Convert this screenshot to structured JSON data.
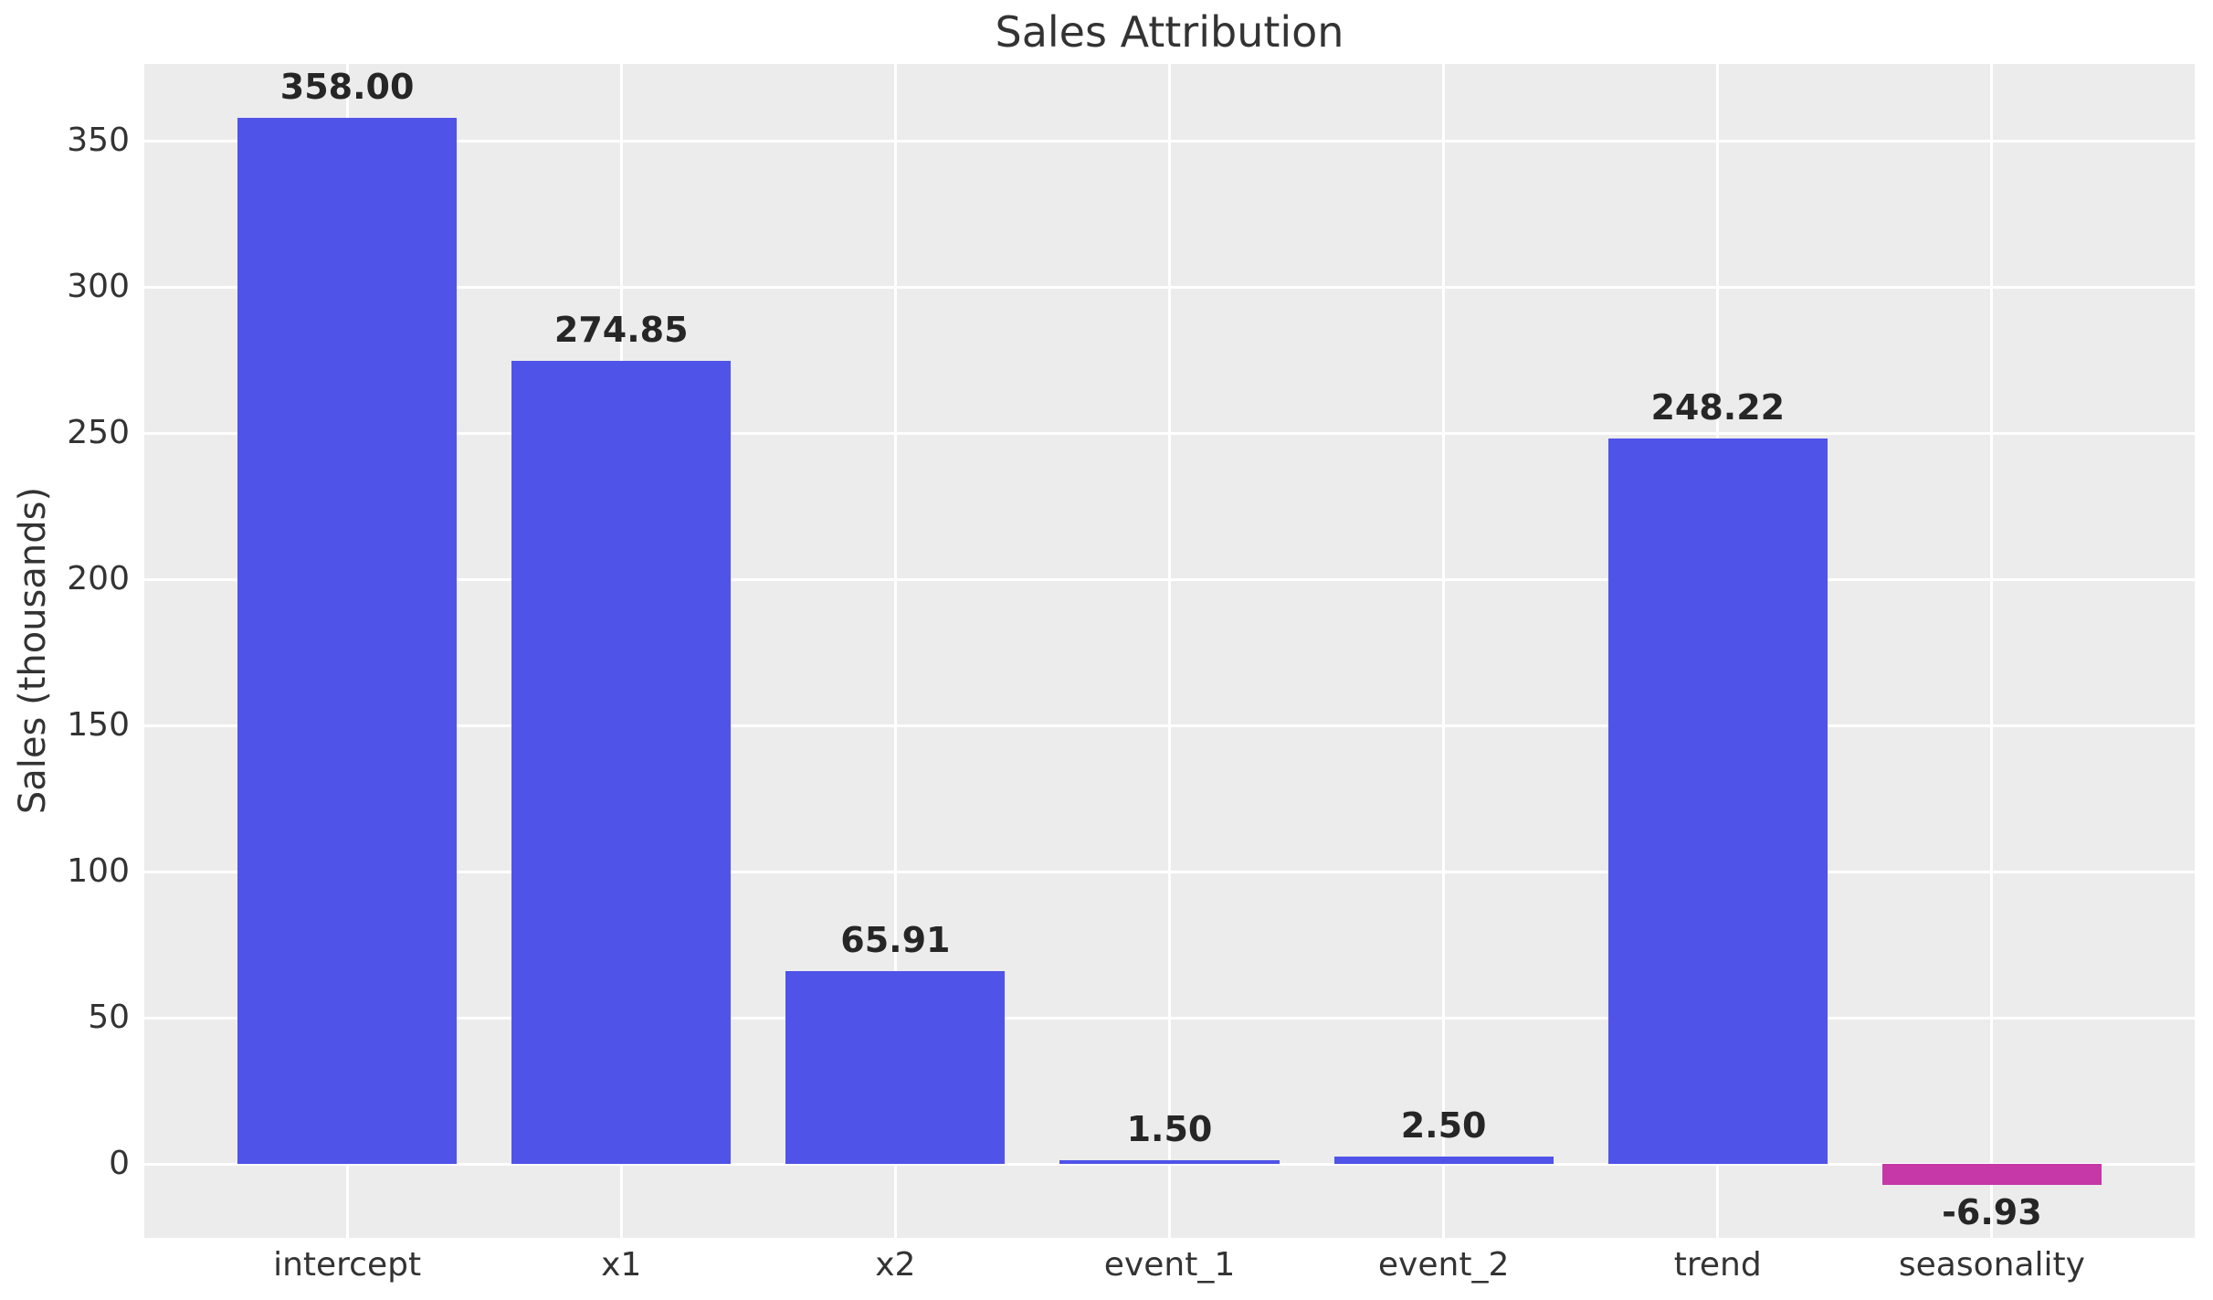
{
  "chart_data": {
    "type": "bar",
    "title": "Sales Attribution",
    "xlabel": "",
    "ylabel": "Sales (thousands)",
    "categories": [
      "intercept",
      "x1",
      "x2",
      "event_1",
      "event_2",
      "trend",
      "seasonality"
    ],
    "values": [
      358.0,
      274.85,
      65.91,
      1.5,
      2.5,
      248.22,
      -6.93
    ],
    "value_labels": [
      "358.00",
      "274.85",
      "65.91",
      "1.50",
      "2.50",
      "248.22",
      "-6.93"
    ],
    "yticks": [
      0,
      50,
      100,
      150,
      200,
      250,
      300,
      350
    ],
    "ytick_labels": [
      "0",
      "50",
      "100",
      "150",
      "200",
      "250",
      "300",
      "350"
    ],
    "ylim": [
      -25.2,
      376.3
    ],
    "xlim": [
      -0.74,
      6.74
    ],
    "bar_width_units": 0.8,
    "grid": true,
    "legend": null,
    "colors": {
      "positive_bar": "#5053e7",
      "negative_bar": "#c637a7",
      "plot_background": "#ececec",
      "gridline": "#ffffff",
      "figure_background": "#ffffff",
      "title_text": "#333333",
      "tick_text": "#333333",
      "value_label_text": "#262626"
    }
  }
}
